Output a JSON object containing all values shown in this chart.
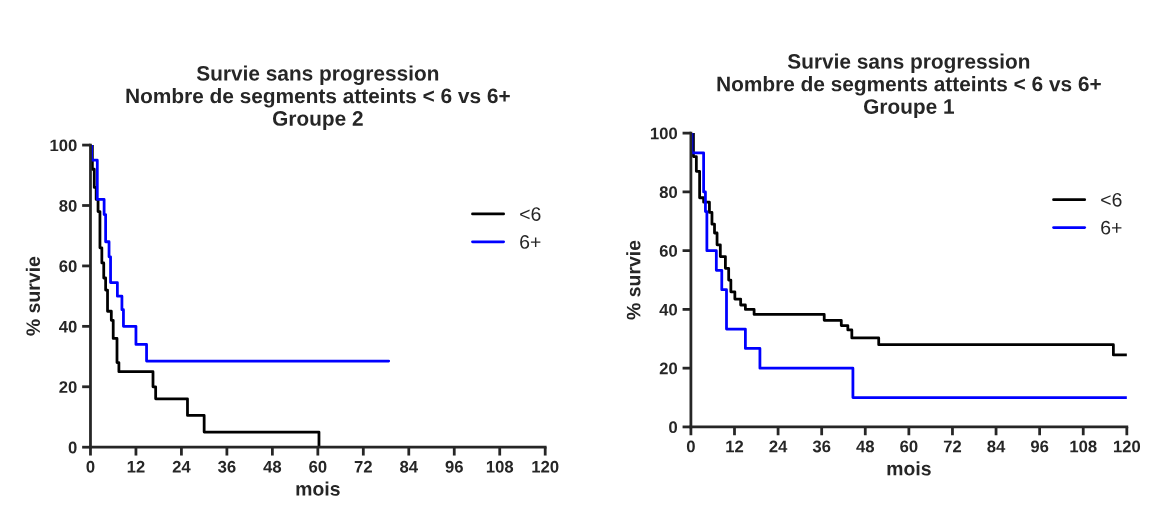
{
  "chart_data": [
    {
      "type": "step",
      "title": "Survie sans progression\nNombre de segments atteints < 6 vs 6+\nGroupe 2",
      "xlabel": "mois",
      "ylabel": "% survie",
      "xlim": [
        0,
        120
      ],
      "xticks": [
        0,
        12,
        24,
        36,
        48,
        60,
        72,
        84,
        96,
        108,
        120
      ],
      "ylim": [
        0,
        100
      ],
      "yticks": [
        0,
        20,
        40,
        60,
        80,
        100
      ],
      "legend": "right",
      "grid": false,
      "series": [
        {
          "name": "<6",
          "color": "#000000",
          "x": [
            0,
            0.5,
            1,
            1.5,
            2,
            2.5,
            3,
            3.5,
            4,
            4.5,
            5.5,
            6,
            7,
            7.5,
            16.5,
            17.2,
            25.6,
            30,
            60.3
          ],
          "values": [
            100,
            92,
            86,
            82,
            78,
            66,
            61,
            56,
            52,
            45,
            42,
            36,
            28,
            25,
            20,
            16,
            10.5,
            5,
            0
          ]
        },
        {
          "name": "6+",
          "color": "#0000ff",
          "x": [
            0,
            0.3,
            1.8,
            3.6,
            4,
            4.9,
            5.3,
            7.1,
            8.3,
            8.7,
            12,
            14.8,
            78.7
          ],
          "values": [
            100,
            95,
            82,
            77,
            68,
            63,
            54.5,
            50,
            45.5,
            40,
            34,
            28.5,
            28.5
          ]
        }
      ]
    },
    {
      "type": "step",
      "title": "Survie sans progression\nNombre de segments atteints < 6 vs 6+\nGroupe 1",
      "xlabel": "mois",
      "ylabel": "% survie",
      "xlim": [
        0,
        120
      ],
      "xticks": [
        0,
        12,
        24,
        36,
        48,
        60,
        72,
        84,
        96,
        108,
        120
      ],
      "ylim": [
        0,
        100
      ],
      "yticks": [
        0,
        20,
        40,
        60,
        80,
        100
      ],
      "legend": "right",
      "grid": false,
      "series": [
        {
          "name": "<6",
          "color": "#000000",
          "x": [
            0,
            0.7,
            1.5,
            2.4,
            3.5,
            5.1,
            5.8,
            6.5,
            7.2,
            8.1,
            9.5,
            10.4,
            11,
            12.1,
            13.7,
            15,
            17.4,
            36.7,
            41.4,
            43.2,
            44.3,
            51.7,
            116.3,
            120
          ],
          "values": [
            100,
            92,
            87,
            78,
            76.5,
            73,
            69,
            66,
            62,
            58,
            54,
            50,
            46,
            43.5,
            41.5,
            40,
            38.3,
            36.3,
            34.5,
            33,
            30.3,
            28,
            24.5,
            24.5
          ]
        },
        {
          "name": "6+",
          "color": "#0000ff",
          "x": [
            0,
            0.3,
            3.5,
            4,
            4.4,
            7,
            8.5,
            9.8,
            15,
            19,
            44.6,
            120
          ],
          "values": [
            100,
            93.3,
            80,
            73.3,
            60,
            53.3,
            46.7,
            33.3,
            26.7,
            20,
            10,
            10
          ]
        }
      ]
    }
  ]
}
